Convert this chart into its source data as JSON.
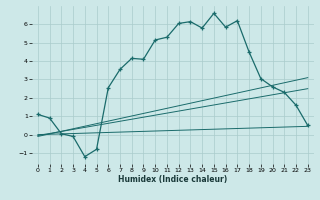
{
  "xlabel": "Humidex (Indice chaleur)",
  "bg_color": "#cde8e8",
  "grid_color": "#aacccc",
  "line_color": "#1a6b6b",
  "xlim": [
    -0.5,
    23.5
  ],
  "ylim": [
    -1.6,
    7.0
  ],
  "xticks": [
    0,
    1,
    2,
    3,
    4,
    5,
    6,
    7,
    8,
    9,
    10,
    11,
    12,
    13,
    14,
    15,
    16,
    17,
    18,
    19,
    20,
    21,
    22,
    23
  ],
  "yticks": [
    -1,
    0,
    1,
    2,
    3,
    4,
    5,
    6
  ],
  "series1_x": [
    0,
    1,
    2,
    3,
    4,
    5,
    6,
    7,
    8,
    9,
    10,
    11,
    12,
    13,
    14,
    15,
    16,
    17,
    18,
    19,
    20,
    21,
    22,
    23
  ],
  "series1_y": [
    1.1,
    0.9,
    0.05,
    -0.1,
    -1.2,
    -0.8,
    2.55,
    3.55,
    4.15,
    4.1,
    5.15,
    5.3,
    6.05,
    6.15,
    5.8,
    6.6,
    5.85,
    6.2,
    4.5,
    3.05,
    2.6,
    2.3,
    1.6,
    0.5
  ],
  "series2_x": [
    0,
    23
  ],
  "series2_y": [
    0.0,
    0.45
  ],
  "series3_x": [
    0,
    23
  ],
  "series3_y": [
    -0.05,
    2.5
  ],
  "series4_x": [
    0,
    23
  ],
  "series4_y": [
    -0.1,
    3.1
  ]
}
